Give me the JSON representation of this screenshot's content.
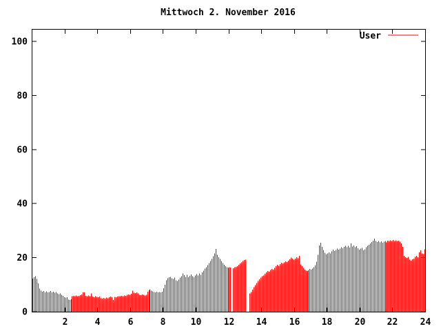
{
  "title": "Mittwoch 2. November 2016",
  "legend": {
    "label": "User",
    "position": "top-right-inside"
  },
  "colors": {
    "series": "#ff0000",
    "axis": "#000000",
    "text": "#000000",
    "background": "#ffffff"
  },
  "axes": {
    "x": {
      "tick_labels": [
        "2",
        "4",
        "6",
        "8",
        "10",
        "12",
        "14",
        "16",
        "18",
        "20",
        "22",
        "24"
      ],
      "ticks": [
        2,
        4,
        6,
        8,
        10,
        12,
        14,
        16,
        18,
        20,
        22,
        24
      ],
      "range": [
        0,
        24
      ]
    },
    "y": {
      "tick_labels": [
        "0",
        "20",
        "40",
        "60",
        "80",
        "100"
      ],
      "ticks": [
        0,
        20,
        40,
        60,
        80,
        100
      ],
      "range": [
        0,
        105
      ]
    }
  },
  "chart_data": {
    "type": "bar",
    "title": "Mittwoch 2. November 2016",
    "xlabel": "",
    "ylabel": "",
    "x_unit": "hour of day (0-24)",
    "sample_interval_minutes": 5,
    "xlim": [
      0,
      24
    ],
    "ylim": [
      0,
      105
    ],
    "grid": false,
    "legend_position": "top-right-inside",
    "series": [
      {
        "name": "User",
        "color": "#ff0000",
        "values": [
          12.3,
          12.8,
          13.2,
          12.1,
          10.4,
          8.6,
          7.8,
          7.4,
          7.6,
          7.2,
          7.5,
          7.1,
          7.3,
          7.6,
          7.2,
          7.4,
          7.0,
          7.3,
          6.8,
          6.5,
          6.7,
          6.3,
          5.9,
          5.4,
          5.2,
          5.3,
          4.5,
          4.4,
          4.6,
          5.7,
          5.9,
          5.8,
          6.0,
          5.7,
          5.9,
          6.1,
          6.4,
          7.2,
          7.1,
          5.9,
          5.7,
          6.0,
          5.8,
          6.7,
          5.6,
          5.4,
          5.7,
          5.5,
          5.3,
          5.6,
          5.0,
          4.9,
          5.1,
          4.8,
          5.2,
          5.0,
          5.4,
          5.6,
          5.3,
          4.4,
          5.5,
          5.4,
          5.6,
          5.8,
          5.7,
          5.9,
          5.8,
          6.0,
          5.9,
          6.2,
          6.4,
          6.3,
          6.6,
          7.8,
          7.0,
          6.9,
          7.1,
          6.8,
          6.3,
          6.1,
          6.4,
          6.2,
          6.0,
          6.3,
          7.4,
          7.9,
          8.3,
          7.8,
          7.5,
          7.3,
          7.2,
          7.4,
          7.1,
          7.3,
          7.2,
          7.4,
          8.7,
          10.0,
          11.6,
          12.4,
          12.7,
          12.9,
          12.4,
          12.1,
          12.6,
          11.6,
          11.4,
          11.8,
          12.6,
          13.1,
          14.2,
          13.5,
          12.9,
          13.6,
          12.7,
          13.3,
          13.8,
          13.1,
          12.8,
          13.4,
          13.9,
          13.4,
          14.1,
          13.7,
          14.5,
          15.2,
          15.9,
          16.5,
          17.2,
          18.0,
          18.8,
          19.5,
          20.5,
          21.5,
          23.2,
          21.0,
          20.2,
          19.5,
          18.7,
          18.0,
          17.4,
          16.9,
          16.4,
          16.2,
          16.5,
          16.3,
          0,
          16.1,
          16.4,
          16.6,
          16.9,
          17.3,
          17.8,
          18.3,
          18.8,
          19.1,
          19.3,
          0,
          0,
          6.8,
          7.3,
          8.1,
          9.0,
          9.8,
          10.6,
          11.3,
          12.0,
          12.6,
          13.1,
          13.4,
          14.0,
          14.6,
          15.1,
          14.8,
          15.4,
          15.8,
          15.5,
          16.2,
          16.8,
          17.3,
          17.0,
          17.6,
          18.1,
          17.8,
          18.3,
          18.6,
          18.4,
          18.9,
          19.4,
          20.0,
          19.7,
          19.2,
          19.6,
          20.1,
          19.8,
          20.6,
          17.5,
          16.8,
          16.2,
          15.6,
          15.2,
          15.0,
          15.4,
          15.8,
          15.5,
          16.0,
          16.5,
          17.2,
          18.5,
          21.0,
          24.5,
          25.5,
          24.0,
          22.8,
          21.8,
          21.3,
          21.6,
          22.0,
          21.5,
          22.3,
          23.0,
          22.4,
          22.8,
          23.3,
          22.9,
          23.4,
          23.8,
          23.5,
          24.0,
          24.3,
          23.9,
          24.4,
          23.7,
          25.2,
          24.1,
          24.5,
          23.8,
          24.2,
          23.5,
          22.9,
          23.4,
          23.6,
          22.7,
          23.1,
          23.9,
          24.4,
          24.8,
          25.3,
          25.8,
          26.3,
          27.0,
          26.2,
          25.8,
          26.1,
          25.6,
          26.0,
          25.5,
          25.9,
          26.2,
          25.7,
          26.3,
          26.1,
          26.4,
          26.2,
          26.5,
          26.2,
          26.4,
          26.1,
          26.3,
          25.9,
          25.3,
          24.0,
          20.6,
          20.2,
          19.9,
          20.3,
          19.2,
          18.9,
          19.4,
          19.6,
          20.3,
          20.6,
          20.1,
          21.9,
          22.7,
          21.5,
          21.3,
          23.1
        ]
      }
    ]
  }
}
